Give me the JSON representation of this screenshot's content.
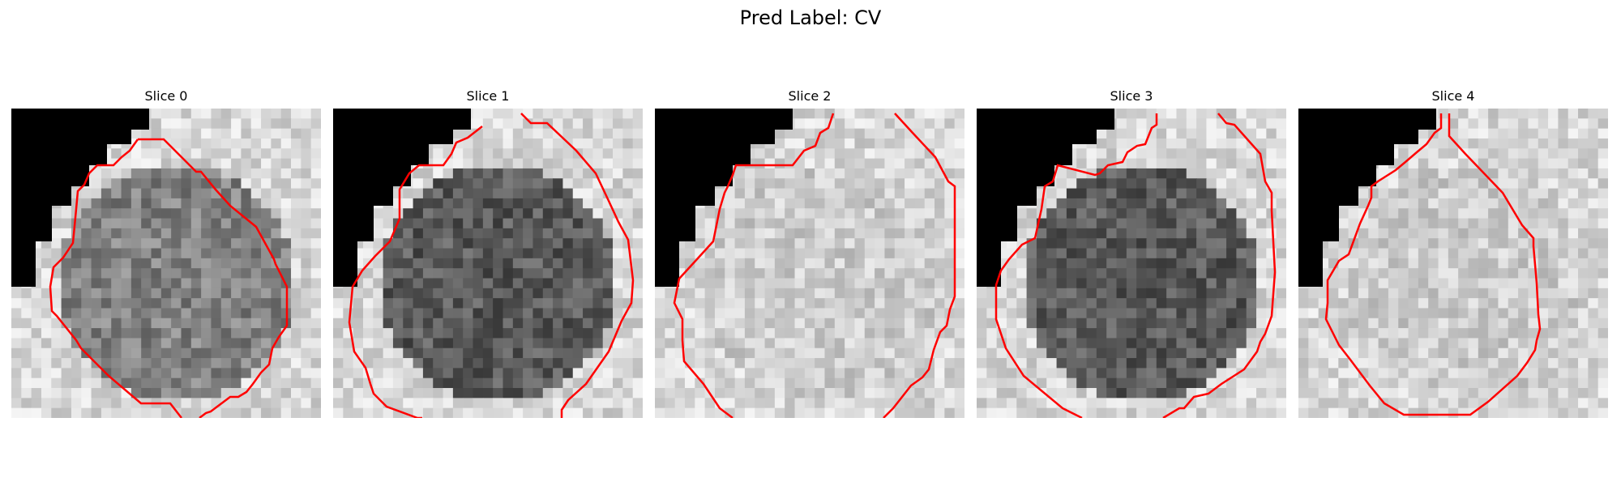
{
  "figure": {
    "title": "Pred Label: CV"
  },
  "panels": [
    {
      "title": "Slice 0",
      "tone": "mid",
      "contour_color": "#ff0000"
    },
    {
      "title": "Slice 1",
      "tone": "dark",
      "contour_color": "#ff0000"
    },
    {
      "title": "Slice 2",
      "tone": "light",
      "contour_color": "#ff0000"
    },
    {
      "title": "Slice 3",
      "tone": "dark",
      "contour_color": "#ff0000"
    },
    {
      "title": "Slice 4",
      "tone": "light",
      "contour_color": "#ff0000"
    }
  ],
  "colors": {
    "background": "#ffffff",
    "mask": "#000000",
    "contour": "#ff0000"
  }
}
